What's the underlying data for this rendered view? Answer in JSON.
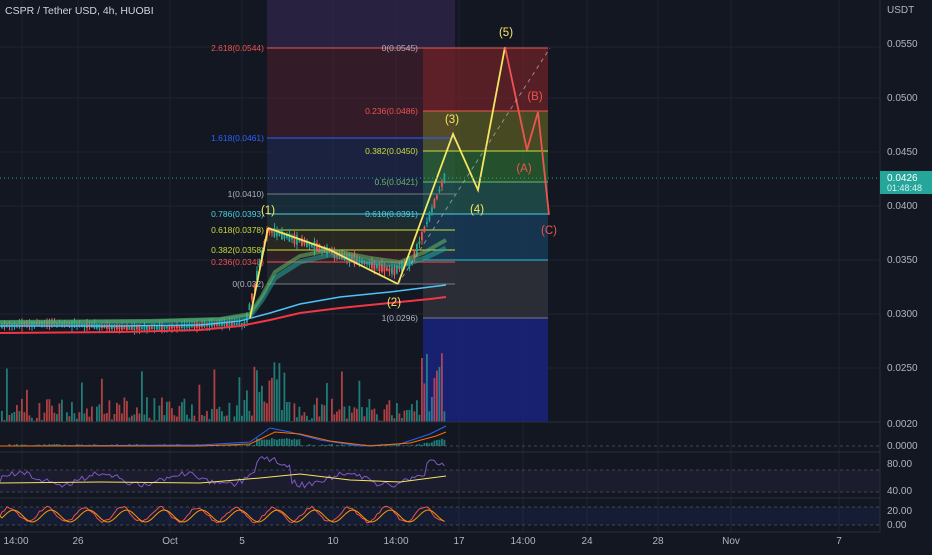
{
  "symbol_title": "CSPR / Tether USD, 4h, HUOBI",
  "currency": "USDT",
  "colors": {
    "background": "#131722",
    "grid": "#1f2430",
    "up": "#26a69a",
    "down": "#ef5350",
    "impulse": "#f5e663",
    "corrective": "#ef5350",
    "price_badge": "#26a69a"
  },
  "price_axis": {
    "ticks": [
      "0.0550",
      "0.0500",
      "0.0450",
      "0.0400",
      "0.0350",
      "0.0300",
      "0.0250",
      "0.0020"
    ],
    "current_price": "0.0426",
    "countdown": "01:48:48"
  },
  "time_axis": {
    "ticks": [
      "14:00",
      "26",
      "Oct",
      "5",
      "10",
      "14:00",
      "17",
      "14:00",
      "24",
      "28",
      "Nov",
      "7"
    ]
  },
  "indicator_axes": {
    "macd": [
      "0.0000"
    ],
    "rsi": [
      "80.00",
      "40.00"
    ],
    "stoch": [
      "20.00",
      "0.00"
    ]
  },
  "fib_levels_left": [
    {
      "text": "2.618(0.0544)",
      "color": "#ef5350"
    },
    {
      "text": "1.618(0.0461)",
      "color": "#2962ff"
    },
    {
      "text": "1(0.0410)",
      "color": "#b2b5be"
    },
    {
      "text": "0.786(0.0393)",
      "color": "#4dd0e1"
    },
    {
      "text": "0.618(0.0378)",
      "color": "#cddc39"
    },
    {
      "text": "0.382(0.0358)",
      "color": "#cddc39"
    },
    {
      "text": "0.236(0.0348)",
      "color": "#ef5350"
    },
    {
      "text": "0(0.032)",
      "color": "#b2b5be"
    }
  ],
  "fib_levels_right": [
    {
      "text": "0(0.0545)",
      "color": "#b2b5be"
    },
    {
      "text": "0.236(0.0486)",
      "color": "#ef5350"
    },
    {
      "text": "0.382(0.0450)",
      "color": "#cddc39"
    },
    {
      "text": "0.5(0.0421)",
      "color": "#66bb6a"
    },
    {
      "text": "0.618(0.0391)",
      "color": "#4dd0e1"
    },
    {
      "text": "1(0.0296)",
      "color": "#b2b5be"
    }
  ],
  "wave_labels": {
    "w1": "(1)",
    "w2": "(2)",
    "w3": "(3)",
    "w4": "(4)",
    "w5": "(5)",
    "wA": "(A)",
    "wB": "(B)",
    "wC": "(C)"
  }
}
